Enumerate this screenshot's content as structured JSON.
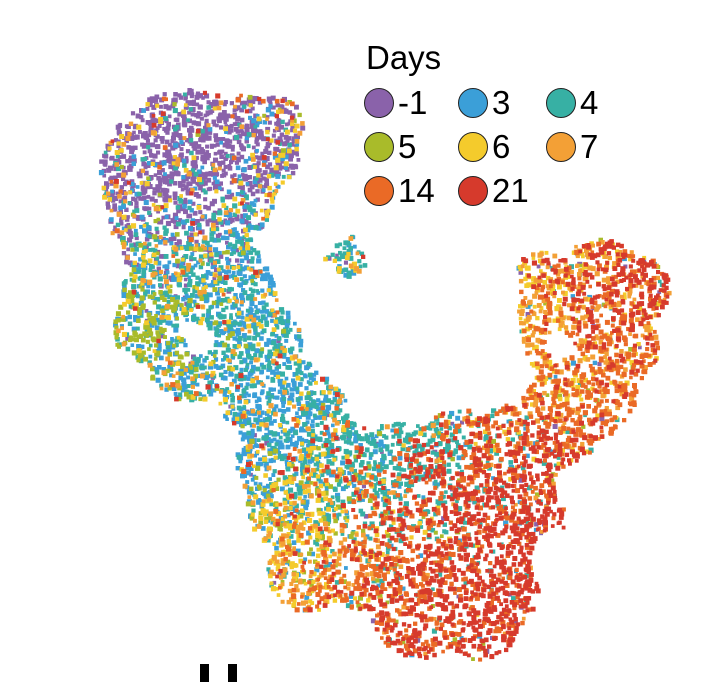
{
  "chart_data": {
    "type": "scatter",
    "title": "",
    "xlabel": "",
    "ylabel": "",
    "grid": false,
    "legend": {
      "title": "Days",
      "placement": "top-right",
      "entries": [
        {
          "label": "-1",
          "color": "#8a62aa"
        },
        {
          "label": "3",
          "color": "#3b9fd8"
        },
        {
          "label": "4",
          "color": "#37b0a4"
        },
        {
          "label": "5",
          "color": "#a9bb2a"
        },
        {
          "label": "6",
          "color": "#f4cb2c"
        },
        {
          "label": "7",
          "color": "#f3a036"
        },
        {
          "label": "14",
          "color": "#ea6a26"
        },
        {
          "label": "21",
          "color": "#d63a2c"
        }
      ]
    },
    "series": [
      {
        "name": "-1"
      },
      {
        "name": "3"
      },
      {
        "name": "4"
      },
      {
        "name": "5"
      },
      {
        "name": "6"
      },
      {
        "name": "7"
      },
      {
        "name": "14"
      },
      {
        "name": "21"
      }
    ]
  }
}
